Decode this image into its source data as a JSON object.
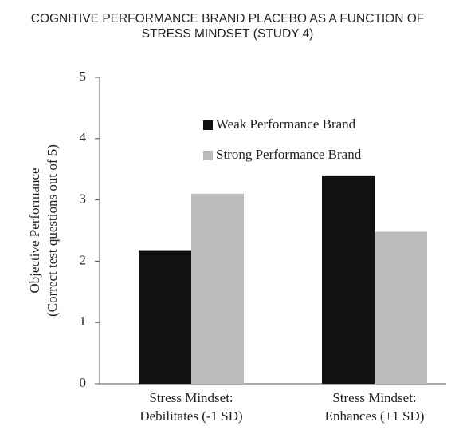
{
  "chart_data": {
    "type": "bar",
    "title": "COGNITIVE PERFORMANCE BRAND PLACEBO AS A FUNCTION OF STRESS MINDSET (STUDY 4)",
    "ylabel": [
      "Objective Performance",
      "(Correct test questions out of 5)"
    ],
    "categories": [
      [
        "Stress Mindset:",
        "Debilitates (-1 SD)"
      ],
      [
        "Stress Mindset:",
        "Enhances (+1 SD)"
      ]
    ],
    "series": [
      {
        "name": "Weak Performance Brand",
        "color": "#111111",
        "values": [
          2.18,
          3.4
        ]
      },
      {
        "name": "Strong Performance Brand",
        "color": "#bbbbbb",
        "values": [
          3.1,
          2.48
        ]
      }
    ],
    "ylim": [
      0,
      5
    ],
    "yticks": [
      0,
      1,
      2,
      3,
      4,
      5
    ],
    "grid": false,
    "legend": "top"
  }
}
